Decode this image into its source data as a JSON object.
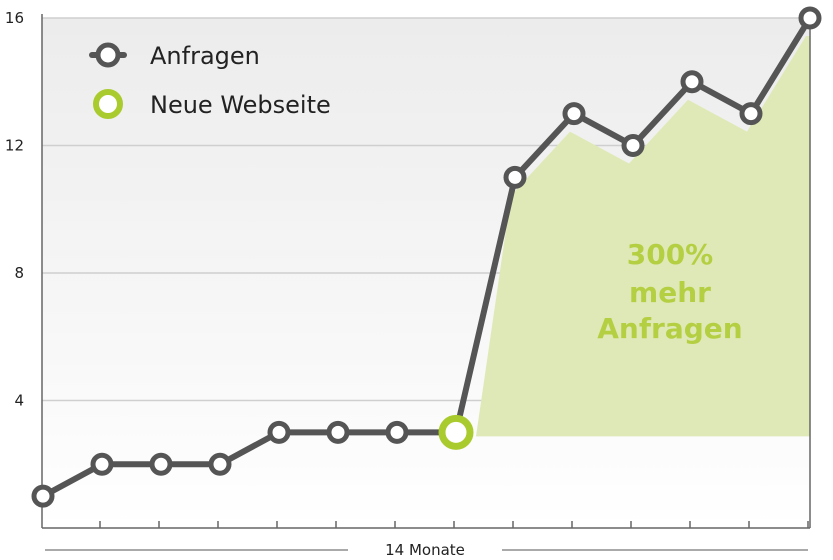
{
  "chart_data": {
    "type": "line",
    "x": [
      1,
      2,
      3,
      4,
      5,
      6,
      7,
      8,
      9,
      10,
      11,
      12,
      13,
      14
    ],
    "series": [
      {
        "name": "Anfragen",
        "values": [
          1,
          2,
          2,
          2,
          3,
          3,
          3,
          3,
          11,
          13,
          12,
          14,
          13,
          16
        ]
      }
    ],
    "highlight_point": {
      "label": "Neue Webseite",
      "x": 8,
      "y": 3
    },
    "ylim": [
      0,
      16
    ],
    "yticks": [
      "4",
      "8",
      "12",
      "16"
    ],
    "xlabel": "14 Monate",
    "annotation": [
      "300%",
      "mehr",
      "Anfragen"
    ],
    "legend": [
      {
        "label": "Anfragen",
        "marker": "gray-ring"
      },
      {
        "label": "Neue Webseite",
        "marker": "green-ring"
      }
    ],
    "legend_position": "top-left",
    "grid": true,
    "colors": {
      "line": "#555555",
      "highlight": "#a9cb2e",
      "area": "#dfe9b7",
      "annotation": "#b5cf43",
      "grid": "#cfcfcf"
    }
  }
}
